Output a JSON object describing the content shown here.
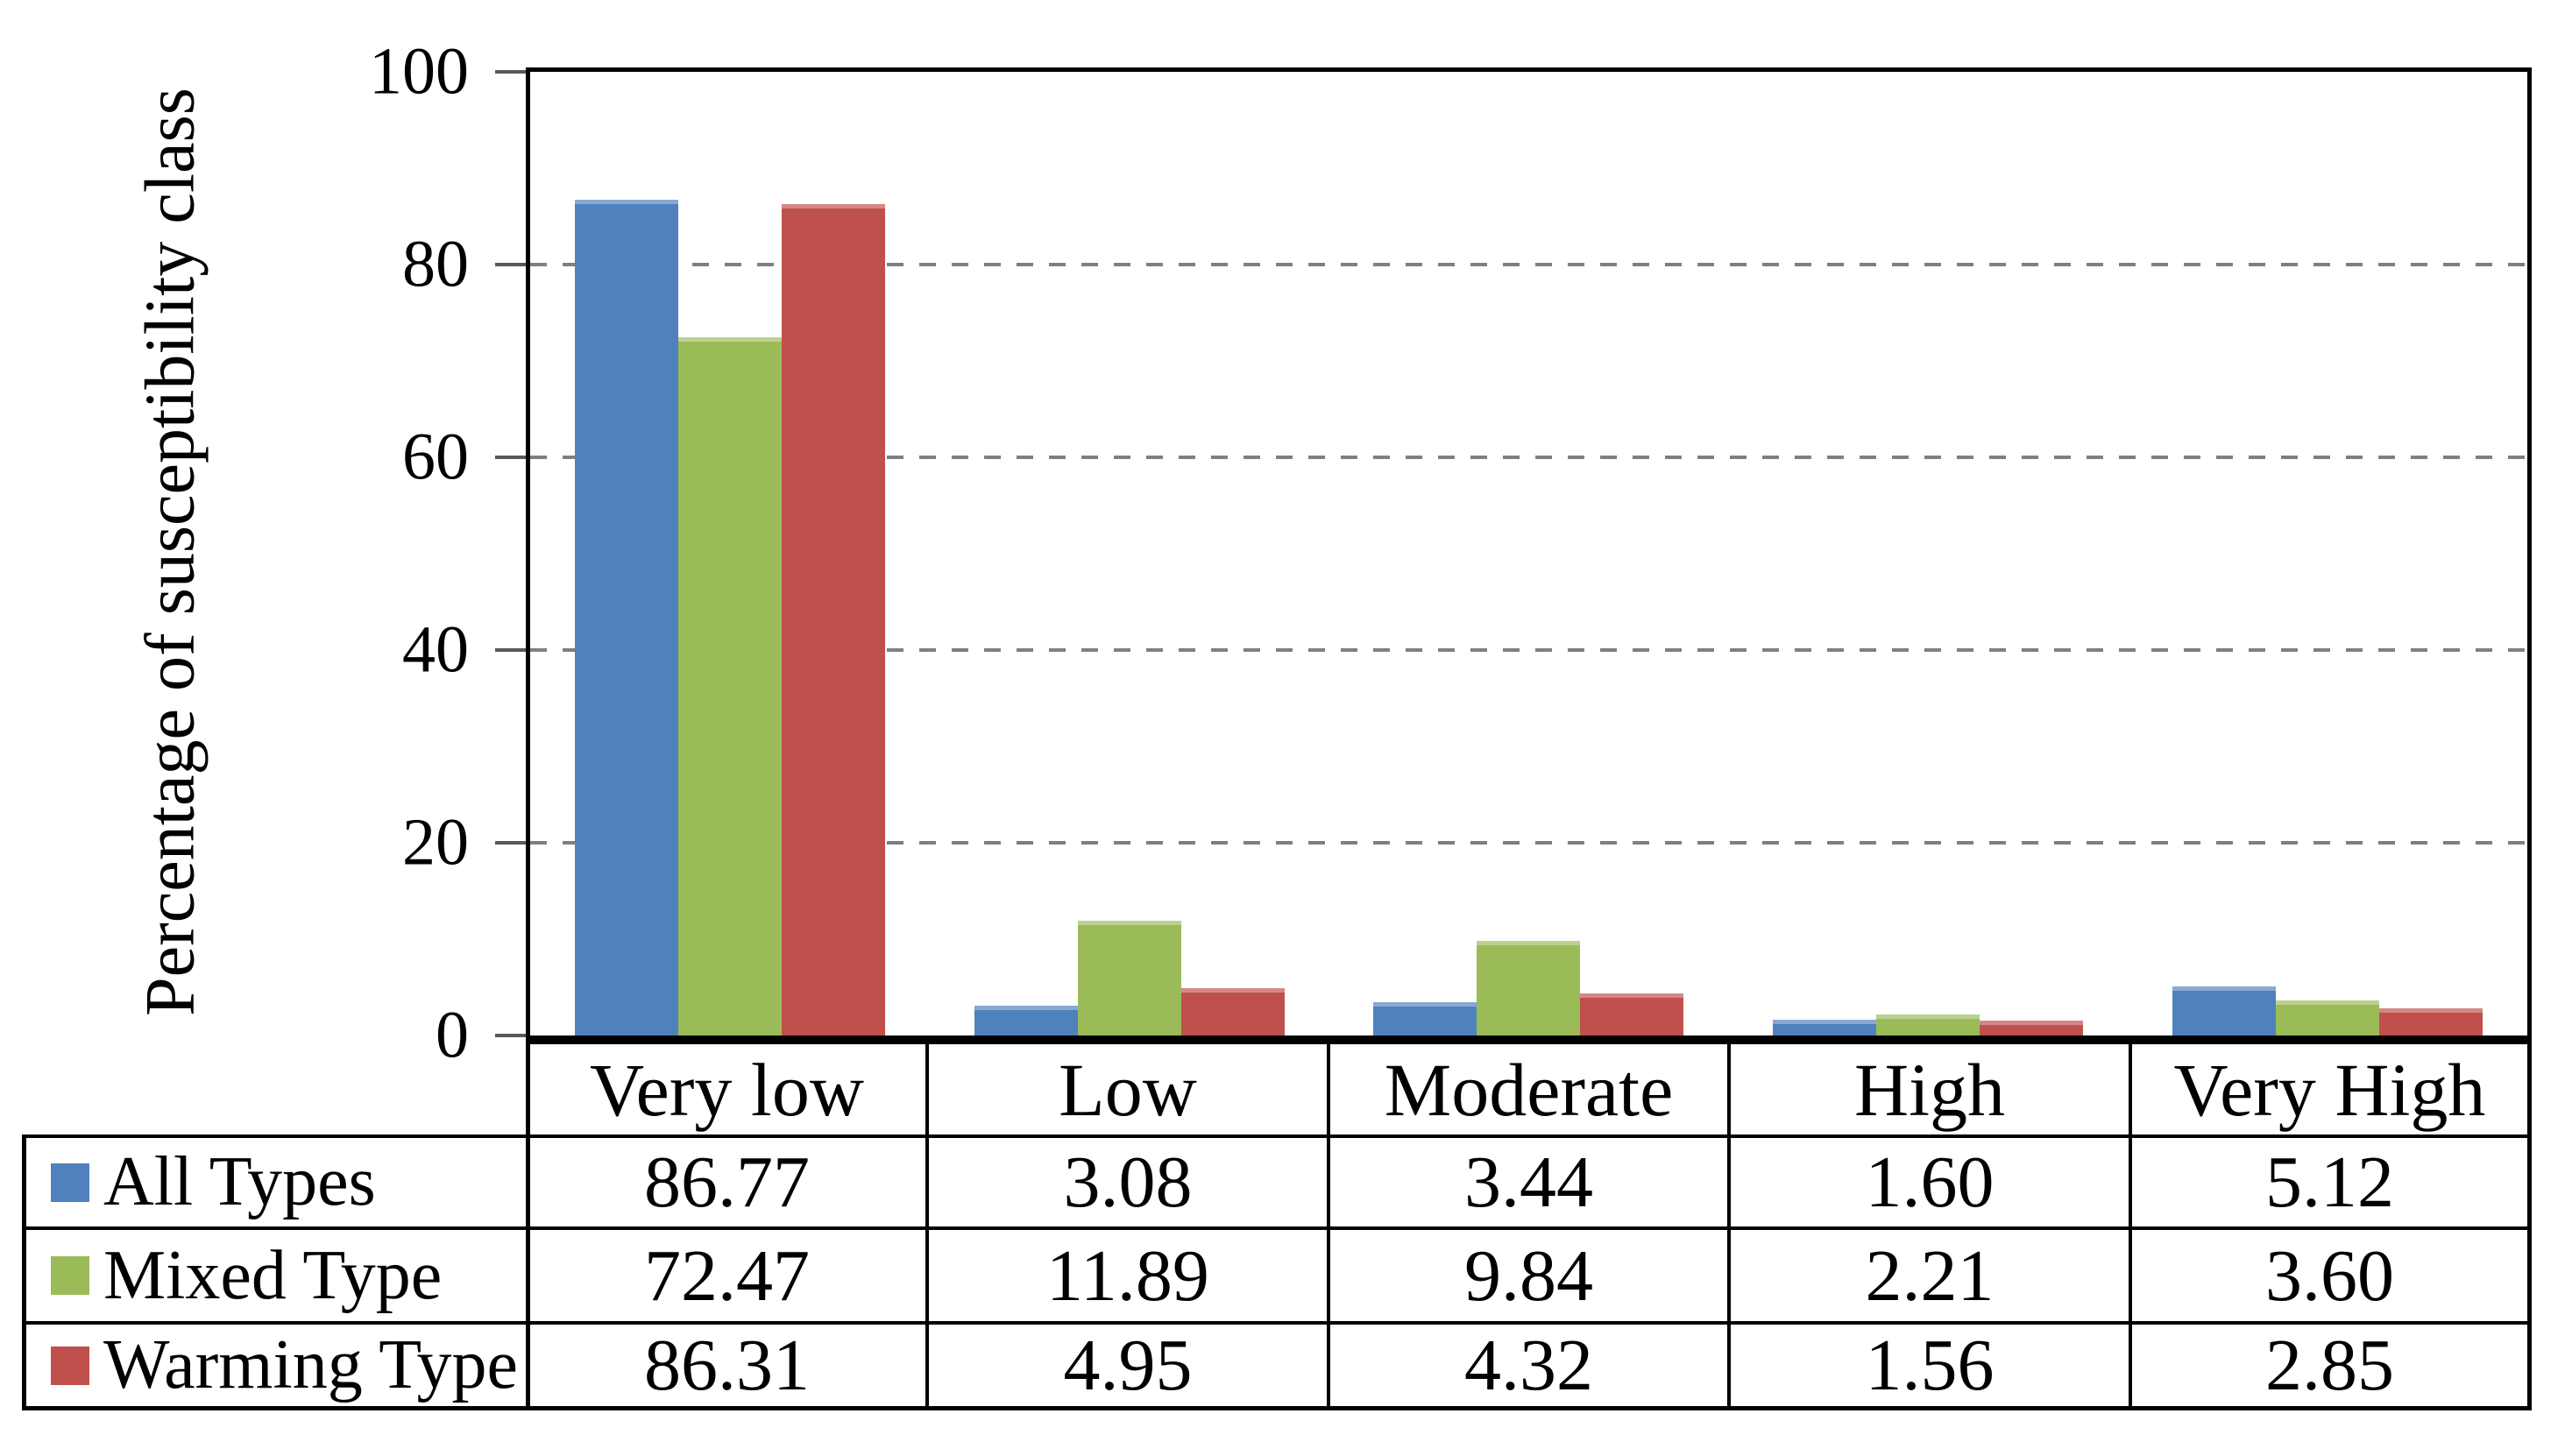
{
  "chart_data": {
    "type": "bar",
    "title": "",
    "xlabel": "",
    "ylabel": "Percentage of susceptibility class",
    "ylim": [
      0,
      100
    ],
    "yticks": [
      0,
      20,
      40,
      60,
      80,
      100
    ],
    "gridline_values": [
      20,
      40,
      60,
      80
    ],
    "grid": true,
    "grid_style": "dashed",
    "legend_position": "table-left",
    "categories": [
      "Very low",
      "Low",
      "Moderate",
      "High",
      "Very High"
    ],
    "series": [
      {
        "name": "All Types",
        "color": "#4F81BD",
        "values": [
          86.77,
          3.08,
          3.44,
          1.6,
          5.12
        ]
      },
      {
        "name": "Mixed Type",
        "color": "#9BBB59",
        "values": [
          72.47,
          11.89,
          9.84,
          2.21,
          3.6
        ]
      },
      {
        "name": "Warming Type",
        "color": "#C0504D",
        "values": [
          86.31,
          4.95,
          4.32,
          1.56,
          2.85
        ]
      }
    ]
  },
  "y_axis": {
    "title": "Percentage of susceptibility class",
    "tick_labels": [
      "100",
      "80",
      "60",
      "40",
      "20",
      "0"
    ]
  },
  "table": {
    "header": [
      "Very low",
      "Low",
      "Moderate",
      "High",
      "Very High"
    ],
    "rows": [
      {
        "label": "All Types",
        "values": [
          "86.77",
          "3.08",
          "3.44",
          "1.60",
          "5.12"
        ]
      },
      {
        "label": "Mixed Type",
        "values": [
          "72.47",
          "11.89",
          "9.84",
          "2.21",
          "3.60"
        ]
      },
      {
        "label": "Warming Type",
        "values": [
          "86.31",
          "4.95",
          "4.32",
          "1.56",
          "2.85"
        ]
      }
    ]
  },
  "colors": {
    "series_blue": "#4F81BD",
    "series_green": "#9BBB59",
    "series_red": "#C0504D",
    "gridline": "#7F7F7F",
    "axis_tick": "#595959",
    "border": "#000000",
    "background": "#FFFFFF"
  }
}
